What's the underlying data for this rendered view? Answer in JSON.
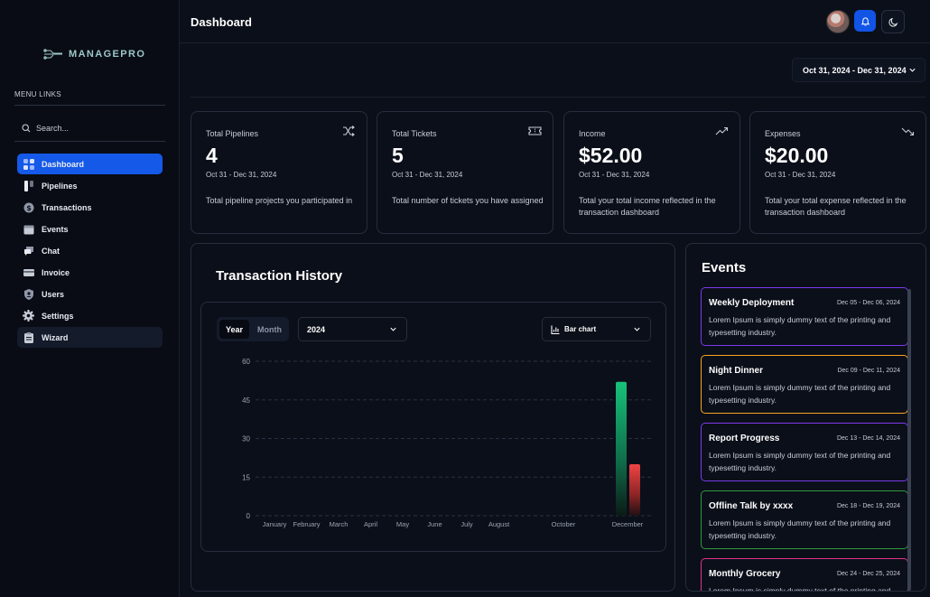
{
  "brand": {
    "name": "MANAGEPRO",
    "accent": "#1559e8"
  },
  "sidebar": {
    "menu_title": "MENU LINKS",
    "search_placeholder": "Search...",
    "items": [
      {
        "label": "Dashboard",
        "icon": "grid-icon"
      },
      {
        "label": "Pipelines",
        "icon": "pipeline-icon"
      },
      {
        "label": "Transactions",
        "icon": "dollar-icon"
      },
      {
        "label": "Events",
        "icon": "calendar-icon"
      },
      {
        "label": "Chat",
        "icon": "chat-icon"
      },
      {
        "label": "Invoice",
        "icon": "card-icon"
      },
      {
        "label": "Users",
        "icon": "user-shield-icon"
      },
      {
        "label": "Settings",
        "icon": "gear-icon"
      },
      {
        "label": "Wizard",
        "icon": "clipboard-icon"
      }
    ]
  },
  "header": {
    "title": "Dashboard"
  },
  "date_range": "Oct 31, 2024 - Dec 31, 2024",
  "stats": [
    {
      "title": "Total Pipelines",
      "value": "4",
      "date": "Oct 31 - Dec 31, 2024",
      "desc": "Total pipeline projects you participated in",
      "icon": "shuffle-icon"
    },
    {
      "title": "Total Tickets",
      "value": "5",
      "date": "Oct 31 - Dec 31, 2024",
      "desc": "Total number of tickets you have assigned",
      "icon": "ticket-icon"
    },
    {
      "title": "Income",
      "value": "$52.00",
      "date": "Oct 31 - Dec 31, 2024",
      "desc": "Total your total income reflected in the transaction dashboard",
      "icon": "trend-up-icon"
    },
    {
      "title": "Expenses",
      "value": "$20.00",
      "date": "Oct 31 - Dec 31, 2024",
      "desc": "Total your total expense reflected in the transaction dashboard",
      "icon": "trend-down-icon"
    }
  ],
  "transactions": {
    "title": "Transaction History",
    "toggle": [
      "Year",
      "Month"
    ],
    "year_value": "2024",
    "chart_type_value": "Bar chart"
  },
  "chart_data": {
    "type": "bar",
    "categories": [
      "January",
      "February",
      "March",
      "April",
      "May",
      "June",
      "July",
      "August",
      "October",
      "December"
    ],
    "series": [
      {
        "values": [
          0,
          0,
          0,
          0,
          0,
          0,
          0,
          0,
          0,
          52
        ],
        "color": "#17b26a"
      },
      {
        "values": [
          0,
          0,
          0,
          0,
          0,
          0,
          0,
          0,
          0,
          20
        ],
        "color": "#e5383b"
      }
    ],
    "yticks": [
      0,
      15,
      30,
      45,
      60
    ],
    "ylim": [
      0,
      60
    ],
    "grid": true
  },
  "events": {
    "title": "Events",
    "items": [
      {
        "name": "Weekly Deployment",
        "date": "Dec 05 - Dec 06, 2024",
        "desc": "Lorem Ipsum is simply dummy text of the printing and typesetting industry.",
        "color": "#7c3aed"
      },
      {
        "name": "Night Dinner",
        "date": "Dec 09 - Dec 11, 2024",
        "desc": "Lorem Ipsum is simply dummy text of the printing and typesetting industry.",
        "color": "#f5a524"
      },
      {
        "name": "Report Progress",
        "date": "Dec 13 - Dec 14, 2024",
        "desc": "Lorem Ipsum is simply dummy text of the printing and typesetting industry.",
        "color": "#7c3aed"
      },
      {
        "name": "Offline Talk by xxxx",
        "date": "Dec 18 - Dec 19, 2024",
        "desc": "Lorem Ipsum is simply dummy text of the printing and typesetting industry.",
        "color": "#2e9a3c"
      },
      {
        "name": "Monthly Grocery",
        "date": "Dec 24 - Dec 25, 2024",
        "desc": "Lorem Ipsum is simply dummy text of the printing and typesetting industry.",
        "color": "#e0338d"
      }
    ]
  }
}
